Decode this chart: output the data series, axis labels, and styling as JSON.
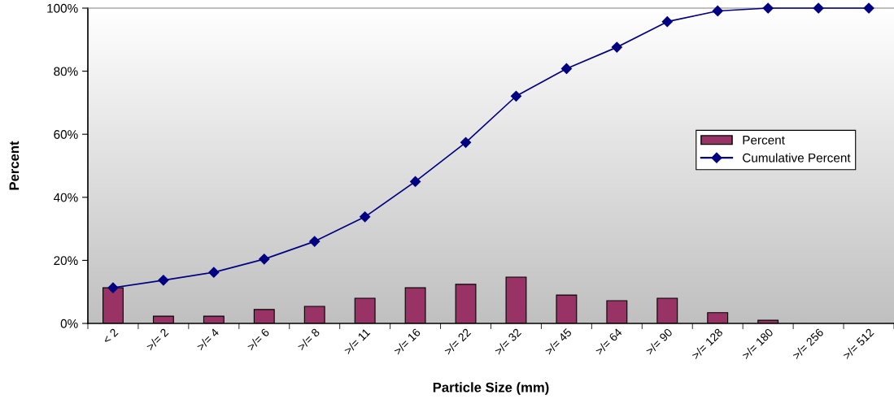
{
  "chart_data": {
    "type": "bar",
    "xlabel": "Particle Size (mm)",
    "ylabel": "Percent",
    "categories": [
      "< 2",
      ">/= 2",
      ">/= 4",
      ">/= 6",
      ">/= 8",
      ">/= 11",
      ">/= 16",
      ">/= 22",
      ">/= 32",
      ">/= 45",
      ">/= 64",
      ">/= 90",
      ">/= 128",
      ">/= 180",
      ">/= 256",
      ">/= 512"
    ],
    "series": [
      {
        "name": "Percent",
        "color": "#993366",
        "values": [
          11.3,
          2.3,
          2.3,
          4.4,
          5.4,
          8.0,
          11.3,
          12.4,
          14.7,
          9.0,
          7.2,
          8.0,
          3.4,
          1.0,
          0,
          0
        ]
      },
      {
        "name": "Cumulative Percent",
        "type": "line",
        "color": "#000080",
        "marker": "diamond",
        "values": [
          11.3,
          13.7,
          16.2,
          20.4,
          26.0,
          33.8,
          45.0,
          57.4,
          72.1,
          80.8,
          87.6,
          95.7,
          99.1,
          100,
          100,
          100
        ]
      }
    ],
    "ylim": [
      0,
      100
    ],
    "yticks": [
      {
        "value": 0,
        "label": "0%"
      },
      {
        "value": 20,
        "label": "20%"
      },
      {
        "value": 40,
        "label": "40%"
      },
      {
        "value": 60,
        "label": "60%"
      },
      {
        "value": 80,
        "label": "80%"
      },
      {
        "value": 100,
        "label": "100%"
      }
    ],
    "grid": false,
    "legend": "center right"
  }
}
